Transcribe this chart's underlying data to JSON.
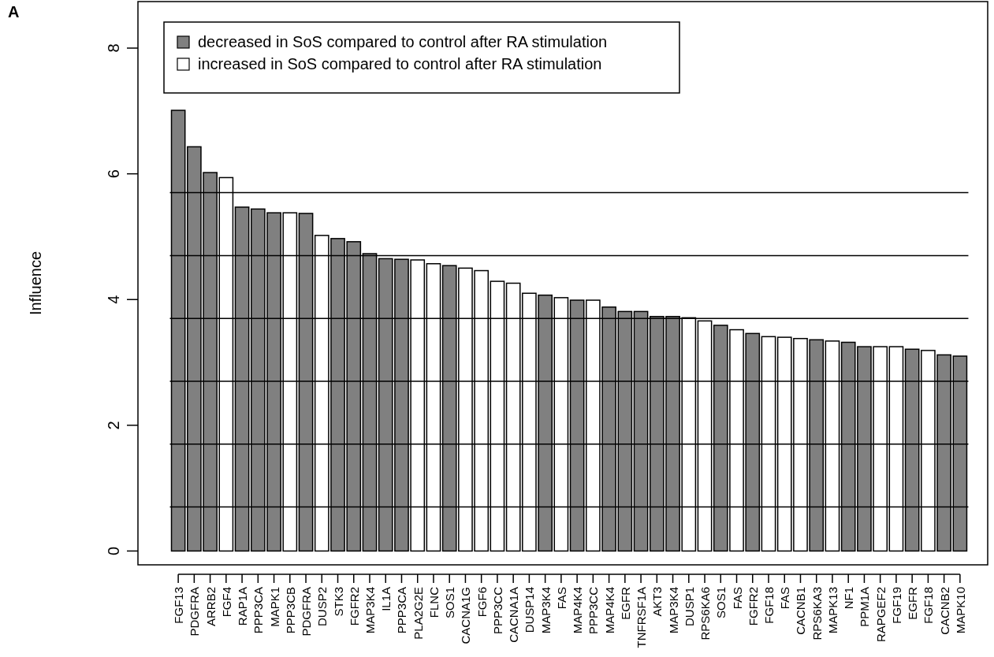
{
  "chart_data": {
    "type": "bar",
    "ylabel": "Influence",
    "annotations": [
      "A"
    ],
    "categories": [
      "FGF13",
      "PDGFRA",
      "ARRB2",
      "FGF4",
      "RAP1A",
      "PPP3CA",
      "MAPK1",
      "PPP3CB",
      "PDGFRA",
      "DUSP2",
      "STK3",
      "FGFR2",
      "MAP3K4",
      "IL1A",
      "PPP3CA",
      "PLA2G2E",
      "FLNC",
      "SOS1",
      "CACNA1G",
      "FGF6",
      "PPP3CC",
      "CACNA1A",
      "DUSP14",
      "MAP3K4",
      "FAS",
      "MAP4K4",
      "PPP3CC",
      "MAP4K4",
      "EGFR",
      "TNFRSF1A",
      "AKT3",
      "MAP3K4",
      "DUSP1",
      "RPS6KA6",
      "SOS1",
      "FAS",
      "FGFR2",
      "FGF18",
      "FAS",
      "CACNB1",
      "RPS6KA3",
      "MAPK13",
      "NF1",
      "PPM1A",
      "RAPGEF2",
      "FGF19",
      "EGFR",
      "FGF18",
      "CACNB2",
      "MAPK10"
    ],
    "series": [
      {
        "name": "decreased in SoS compared to control after RA stimulation",
        "color": "#808080",
        "values": [
          7.01,
          6.43,
          6.02,
          null,
          5.47,
          5.44,
          5.38,
          null,
          5.37,
          null,
          4.97,
          4.92,
          4.73,
          4.65,
          4.64,
          null,
          null,
          4.54,
          null,
          null,
          null,
          null,
          null,
          4.07,
          null,
          3.99,
          null,
          3.88,
          3.81,
          3.81,
          3.73,
          3.73,
          null,
          null,
          3.59,
          null,
          3.46,
          null,
          null,
          null,
          3.36,
          null,
          3.32,
          3.25,
          null,
          null,
          3.21,
          null,
          3.12,
          3.1
        ]
      },
      {
        "name": "increased in SoS compared to control after RA stimulation",
        "color": "#ffffff",
        "values": [
          null,
          null,
          null,
          5.94,
          null,
          null,
          null,
          5.38,
          null,
          5.02,
          null,
          null,
          null,
          null,
          null,
          4.63,
          4.57,
          null,
          4.5,
          4.46,
          4.29,
          4.26,
          4.1,
          null,
          4.03,
          null,
          3.99,
          null,
          null,
          null,
          null,
          null,
          3.71,
          3.66,
          null,
          3.52,
          null,
          3.41,
          3.4,
          3.38,
          null,
          3.34,
          null,
          null,
          3.25,
          3.25,
          null,
          3.19,
          null,
          null
        ]
      }
    ],
    "ylim": [
      -0.22,
      8.74
    ],
    "yticks": [
      0,
      2,
      4,
      6,
      8
    ],
    "ref_lines": [
      {
        "axis": "y",
        "value": 0.7,
        "color": "#000000"
      },
      {
        "axis": "y",
        "value": 1.7,
        "color": "#000000"
      },
      {
        "axis": "y",
        "value": 2.7,
        "color": "#000000"
      },
      {
        "axis": "y",
        "value": 3.7,
        "color": "#000000"
      },
      {
        "axis": "y",
        "value": 4.7,
        "color": "#000000"
      },
      {
        "axis": "y",
        "value": 5.7,
        "color": "#000000"
      }
    ],
    "legend": "top left"
  }
}
